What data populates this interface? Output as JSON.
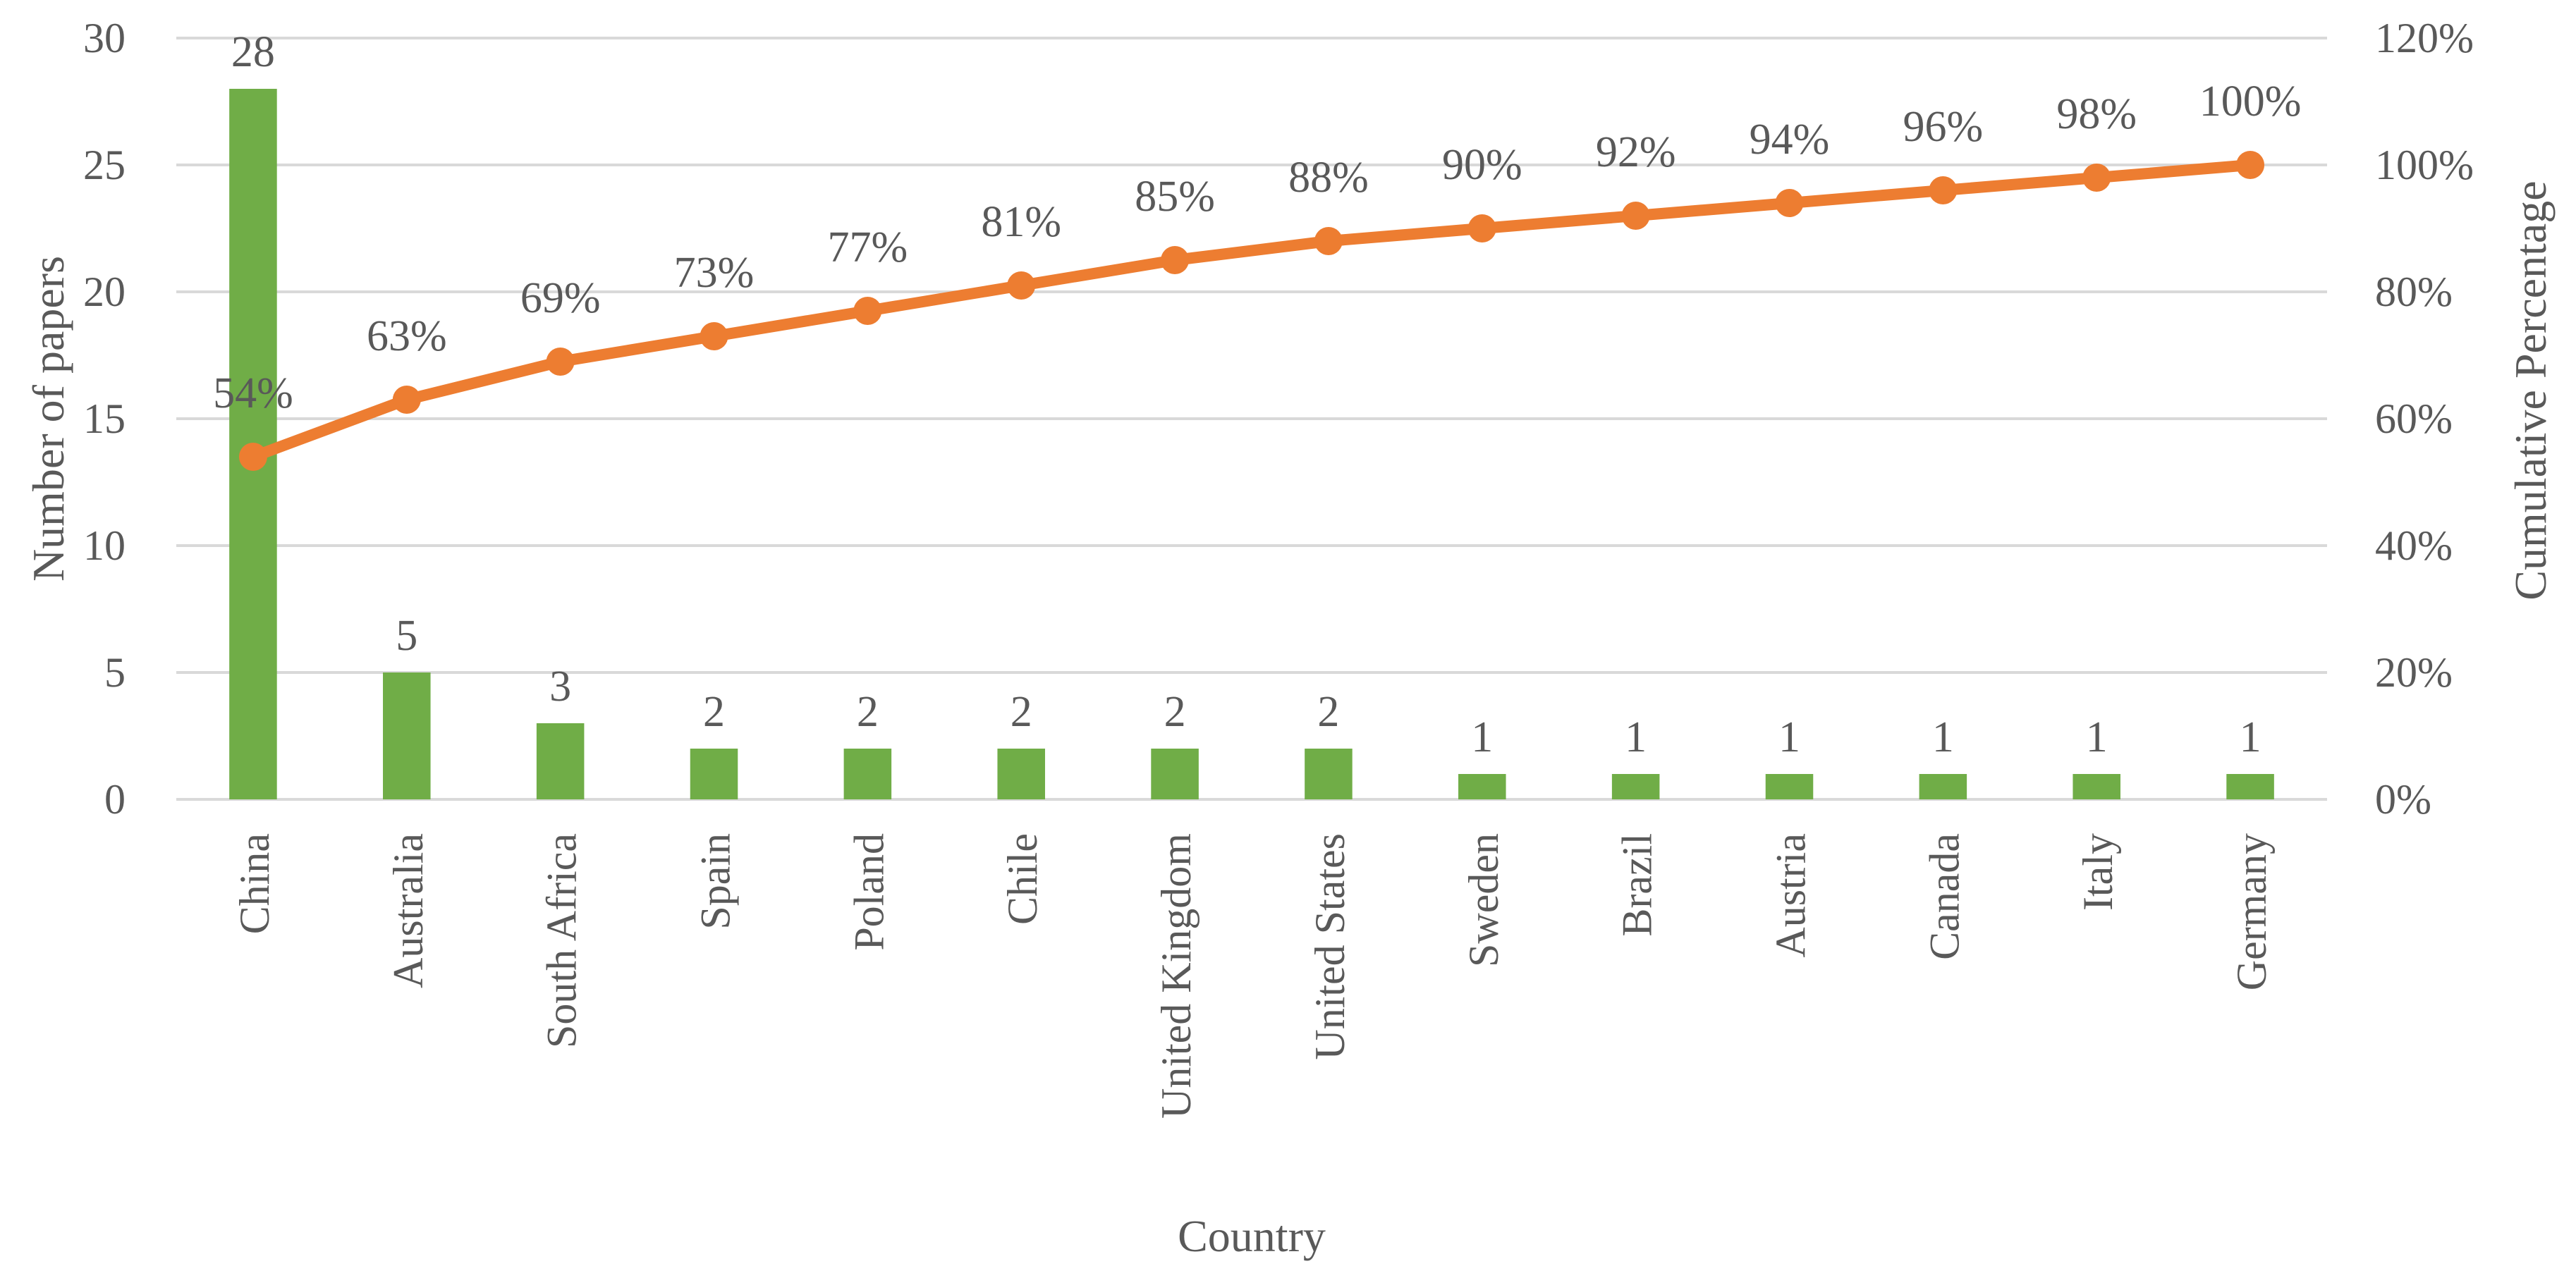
{
  "chart_data": {
    "type": "bar",
    "categories": [
      "China",
      "Australia",
      "South Africa",
      "Spain",
      "Poland",
      "Chile",
      "United Kingdom",
      "United States",
      "Sweden",
      "Brazil",
      "Austria",
      "Canada",
      "Italy",
      "Germany"
    ],
    "series": [
      {
        "type": "bar",
        "axis": "left",
        "color": "#70AD47",
        "values": [
          28,
          5,
          3,
          2,
          2,
          2,
          2,
          2,
          1,
          1,
          1,
          1,
          1,
          1
        ],
        "value_labels": [
          "28",
          "5",
          "3",
          "2",
          "2",
          "2",
          "2",
          "2",
          "1",
          "1",
          "1",
          "1",
          "1",
          "1"
        ]
      },
      {
        "type": "line",
        "axis": "right",
        "color": "#ED7D31",
        "values": [
          54,
          63,
          69,
          73,
          77,
          81,
          85,
          88,
          90,
          92,
          94,
          96,
          98,
          100
        ],
        "value_labels": [
          "54%",
          "63%",
          "69%",
          "73%",
          "77%",
          "81%",
          "85%",
          "88%",
          "90%",
          "92%",
          "94%",
          "96%",
          "98%",
          "100%"
        ]
      }
    ],
    "xlabel": "Country",
    "ylabel": "Number of papers",
    "y2label": "Cumulative Percentage",
    "ylim": [
      0,
      30
    ],
    "y2lim": [
      0,
      120
    ],
    "yticks": [
      "0",
      "5",
      "10",
      "15",
      "20",
      "25",
      "30"
    ],
    "y2ticks": [
      "0%",
      "20%",
      "40%",
      "60%",
      "80%",
      "100%",
      "120%"
    ],
    "grid": true,
    "gridline_color": "#D9D9D9",
    "legend": "none"
  }
}
